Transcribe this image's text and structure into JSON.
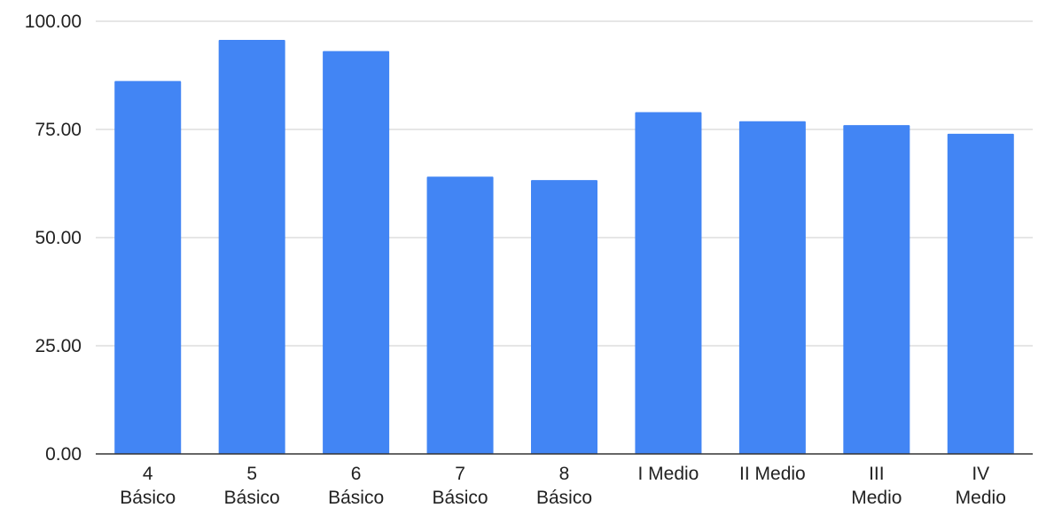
{
  "chart_data": {
    "type": "bar",
    "title": "",
    "xlabel": "",
    "ylabel": "",
    "categories": [
      [
        "4",
        "Básico"
      ],
      [
        "5",
        "Básico"
      ],
      [
        "6",
        "Básico"
      ],
      [
        "7",
        "Básico"
      ],
      [
        "8",
        "Básico"
      ],
      [
        "I Medio"
      ],
      [
        "II Medio"
      ],
      [
        "III",
        "Medio"
      ],
      [
        "IV",
        "Medio"
      ]
    ],
    "values": [
      86.2,
      95.7,
      93.1,
      64.1,
      63.3,
      79.0,
      76.9,
      76.0,
      74.0
    ],
    "ylim": [
      0,
      100
    ],
    "yticks": [
      "0.00",
      "25.00",
      "50.00",
      "75.00",
      "100.00"
    ],
    "ytick_values": [
      0,
      25,
      50,
      75,
      100
    ],
    "grid": true,
    "legend": "none",
    "bar_color": "#4285f4"
  }
}
